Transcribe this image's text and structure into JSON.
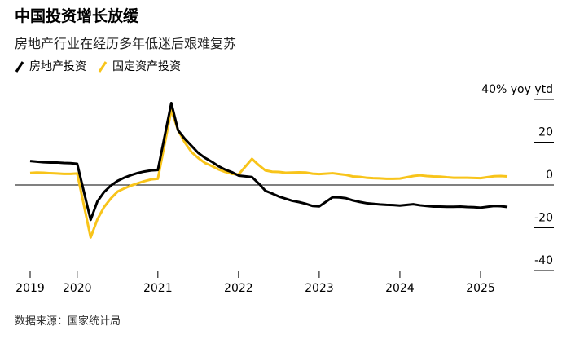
{
  "chart_data": {
    "type": "line",
    "title": "中国投资增长放缓",
    "subtitle": "房地产行业在经历多年低迷后艰难复苏",
    "ylim": [
      -40,
      40
    ],
    "y_axis_side": "right",
    "y_ticks": [
      40,
      20,
      0,
      -20,
      -40
    ],
    "y_tick_labels": [
      "40% yoy ytd",
      "20",
      "0",
      "-20",
      "-40"
    ],
    "x_tick_labels": [
      "2019",
      "2020",
      "2021",
      "2022",
      "2023",
      "2024",
      "2025"
    ],
    "grid": false,
    "zero_line": true,
    "legend_position": "top-left",
    "x": [
      "2019-05",
      "2019-06",
      "2019-07",
      "2019-08",
      "2019-09",
      "2019-10",
      "2019-11",
      "2019-12",
      "2020-02",
      "2020-03",
      "2020-04",
      "2020-05",
      "2020-06",
      "2020-07",
      "2020-08",
      "2020-09",
      "2020-10",
      "2020-11",
      "2020-12",
      "2021-02",
      "2021-03",
      "2021-04",
      "2021-05",
      "2021-06",
      "2021-07",
      "2021-08",
      "2021-09",
      "2021-10",
      "2021-11",
      "2021-12",
      "2022-02",
      "2022-03",
      "2022-04",
      "2022-05",
      "2022-06",
      "2022-07",
      "2022-08",
      "2022-09",
      "2022-10",
      "2022-11",
      "2022-12",
      "2023-02",
      "2023-03",
      "2023-04",
      "2023-05",
      "2023-06",
      "2023-07",
      "2023-08",
      "2023-09",
      "2023-10",
      "2023-11",
      "2023-12",
      "2024-02",
      "2024-03",
      "2024-04",
      "2024-05",
      "2024-06",
      "2024-07",
      "2024-08",
      "2024-09",
      "2024-10",
      "2024-11",
      "2024-12",
      "2025-02",
      "2025-03",
      "2025-04"
    ],
    "series": [
      {
        "name": "房地产投资",
        "color": "#000000",
        "values": [
          11.2,
          10.9,
          10.6,
          10.5,
          10.5,
          10.3,
          10.2,
          9.9,
          -16.3,
          -7.7,
          -3.3,
          -0.3,
          1.9,
          3.4,
          4.6,
          5.6,
          6.3,
          6.8,
          7.0,
          38.3,
          25.6,
          21.6,
          18.3,
          15.0,
          12.7,
          10.9,
          8.8,
          7.2,
          6.0,
          4.4,
          3.7,
          0.7,
          -2.7,
          -4.0,
          -5.4,
          -6.4,
          -7.4,
          -8.0,
          -8.8,
          -9.8,
          -10.0,
          -5.7,
          -5.8,
          -6.2,
          -7.2,
          -7.9,
          -8.5,
          -8.8,
          -9.1,
          -9.3,
          -9.4,
          -9.6,
          -9.0,
          -9.5,
          -9.8,
          -10.1,
          -10.1,
          -10.2,
          -10.2,
          -10.1,
          -10.3,
          -10.4,
          -10.6,
          -9.8,
          -9.9,
          -10.3
        ]
      },
      {
        "name": "固定资产投资",
        "color": "#f8c41a",
        "values": [
          5.6,
          5.8,
          5.7,
          5.5,
          5.4,
          5.2,
          5.2,
          5.4,
          -24.5,
          -16.1,
          -10.3,
          -6.3,
          -3.1,
          -1.6,
          -0.3,
          0.8,
          1.8,
          2.6,
          2.9,
          35.0,
          25.6,
          19.9,
          15.4,
          12.6,
          10.3,
          8.9,
          7.3,
          6.1,
          5.2,
          4.9,
          12.2,
          9.3,
          6.8,
          6.2,
          6.1,
          5.7,
          5.8,
          5.9,
          5.8,
          5.3,
          5.1,
          5.5,
          5.1,
          4.7,
          4.0,
          3.8,
          3.4,
          3.2,
          3.1,
          2.9,
          2.9,
          3.0,
          4.2,
          4.5,
          4.2,
          4.0,
          3.9,
          3.6,
          3.4,
          3.4,
          3.4,
          3.3,
          3.2,
          4.1,
          4.2,
          4.0
        ]
      }
    ]
  },
  "source": "数据来源：国家统计局"
}
